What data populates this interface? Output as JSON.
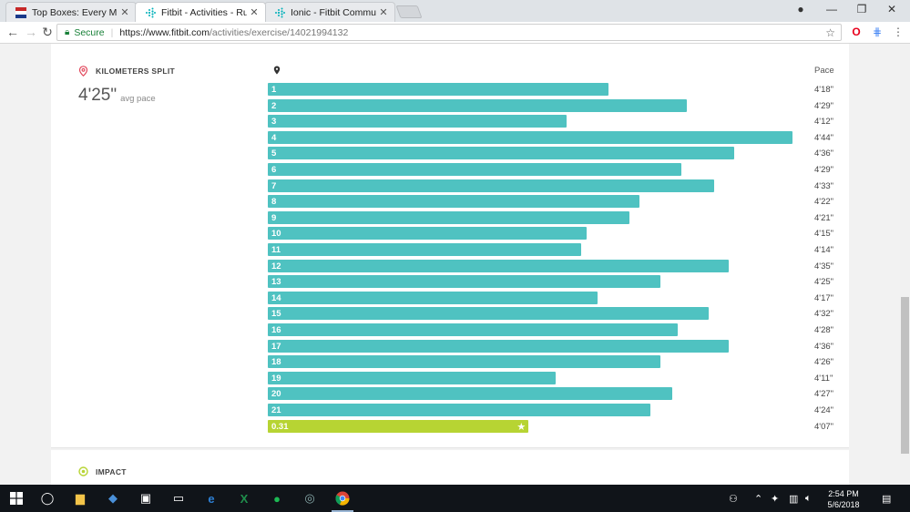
{
  "browser": {
    "tabs": [
      {
        "title": "Top Boxes: Every Minivan",
        "icon": "flag-favicon",
        "active": false
      },
      {
        "title": "Fitbit - Activities - Run",
        "icon": "fitbit-favicon",
        "active": true
      },
      {
        "title": "Ionic - Fitbit Community",
        "icon": "fitbit-favicon",
        "active": false
      }
    ],
    "security_label": "Secure",
    "url_host": "https://www.fitbit.com",
    "url_path": "/activities/exercise/14021994132"
  },
  "splits": {
    "section_title": "KILOMETERS SPLIT",
    "avg_pace": "4'25\"",
    "avg_label": "avg pace",
    "pace_header": "Pace",
    "rows": [
      {
        "label": "1",
        "pace": "4'18\"",
        "fraction": 0.649
      },
      {
        "label": "2",
        "pace": "4'29\"",
        "fraction": 0.799
      },
      {
        "label": "3",
        "pace": "4'12\"",
        "fraction": 0.569
      },
      {
        "label": "4",
        "pace": "4'44\"",
        "fraction": 1.0
      },
      {
        "label": "5",
        "pace": "4'36\"",
        "fraction": 0.889
      },
      {
        "label": "6",
        "pace": "4'29\"",
        "fraction": 0.788
      },
      {
        "label": "7",
        "pace": "4'33\"",
        "fraction": 0.851
      },
      {
        "label": "8",
        "pace": "4'22\"",
        "fraction": 0.708
      },
      {
        "label": "9",
        "pace": "4'21\"",
        "fraction": 0.689
      },
      {
        "label": "10",
        "pace": "4'15\"",
        "fraction": 0.608
      },
      {
        "label": "11",
        "pace": "4'14\"",
        "fraction": 0.597
      },
      {
        "label": "12",
        "pace": "4'35\"",
        "fraction": 0.878
      },
      {
        "label": "13",
        "pace": "4'25\"",
        "fraction": 0.749
      },
      {
        "label": "14",
        "pace": "4'17\"",
        "fraction": 0.628
      },
      {
        "label": "15",
        "pace": "4'32\"",
        "fraction": 0.84
      },
      {
        "label": "16",
        "pace": "4'28\"",
        "fraction": 0.781
      },
      {
        "label": "17",
        "pace": "4'36\"",
        "fraction": 0.878
      },
      {
        "label": "18",
        "pace": "4'26\"",
        "fraction": 0.749
      },
      {
        "label": "19",
        "pace": "4'11\"",
        "fraction": 0.549
      },
      {
        "label": "20",
        "pace": "4'27\"",
        "fraction": 0.771
      },
      {
        "label": "21",
        "pace": "4'24\"",
        "fraction": 0.729
      },
      {
        "label": "0.31",
        "pace": "4'07\"",
        "fraction": 0.497,
        "partial": true
      }
    ],
    "bar_color": "#4fc2c1",
    "partial_color": "#b7d433"
  },
  "impact": {
    "section_title": "IMPACT"
  },
  "taskbar": {
    "time": "2:54 PM",
    "date": "5/6/2018"
  }
}
